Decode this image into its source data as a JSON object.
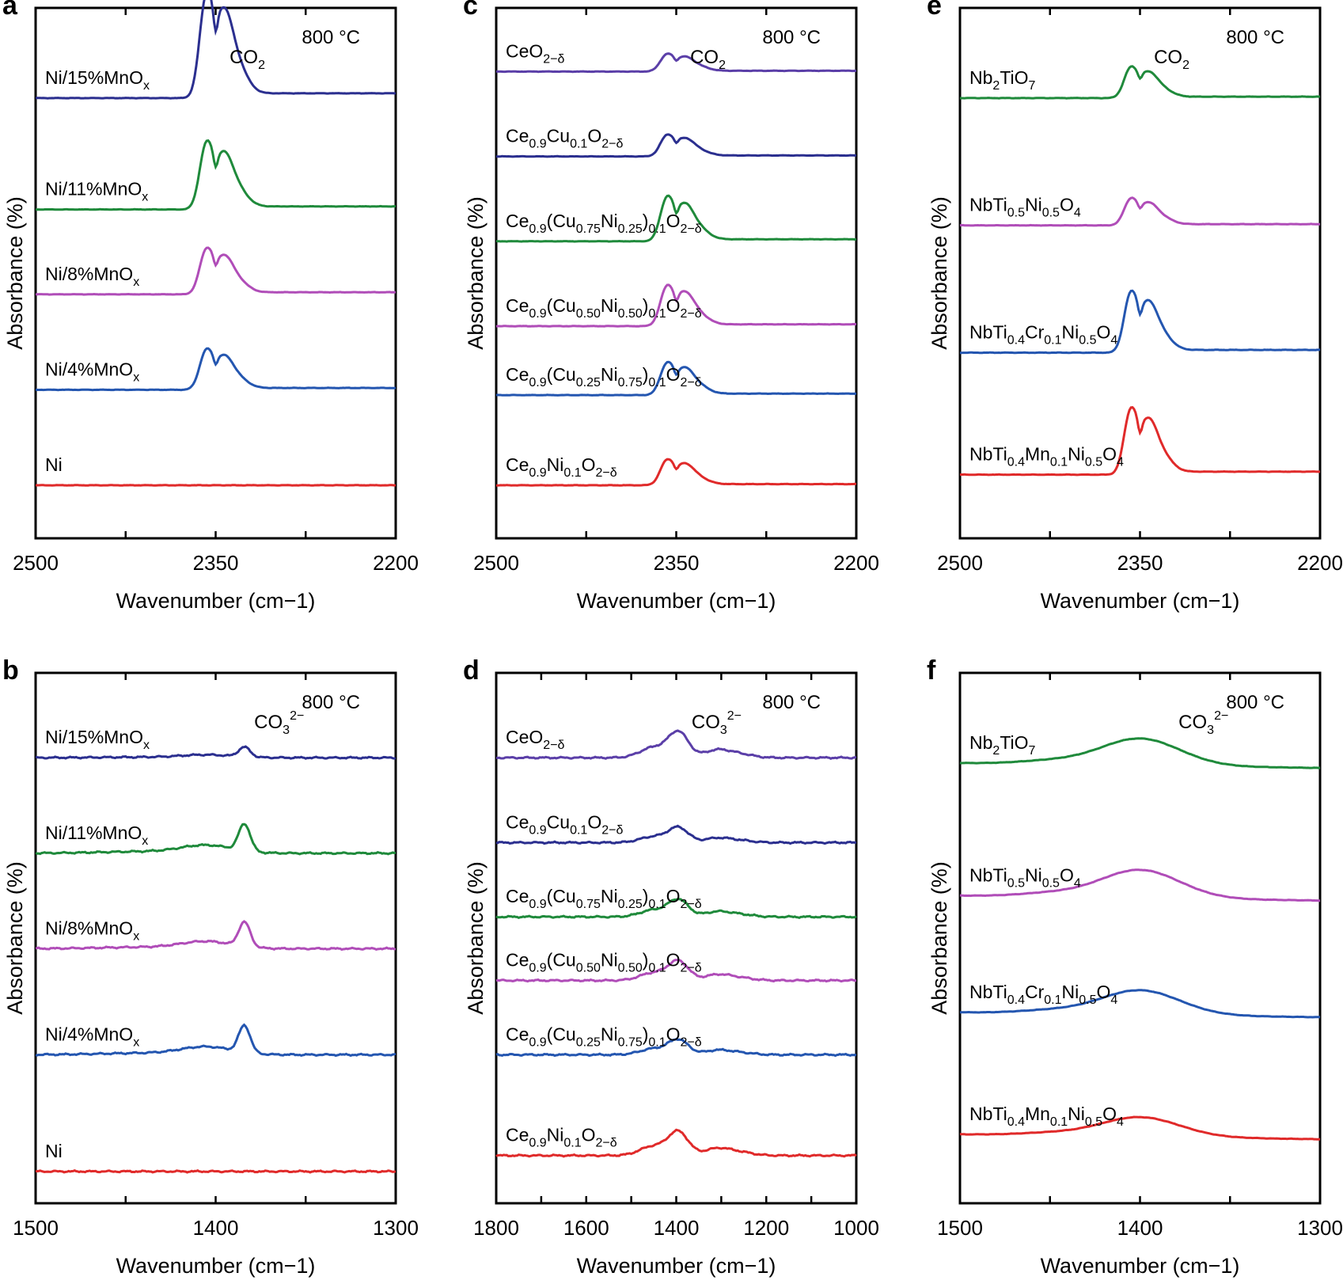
{
  "chart_data": [
    {
      "panel": "a",
      "type": "line",
      "title": "",
      "annotation": "800 °C",
      "band": "CO2",
      "xlabel": "Wavenumber (cm−1)",
      "ylabel": "Absorbance (%)",
      "xlim": [
        2500,
        2200
      ],
      "xticks": [
        2500,
        2350,
        2200
      ],
      "series": [
        {
          "name": "Ni/15%MnOx",
          "color": "#2b2f8f",
          "baseline": 0.83,
          "kind": "co2",
          "amp": 0.78
        },
        {
          "name": "Ni/11%MnOx",
          "color": "#1f8a3b",
          "baseline": 0.62,
          "kind": "co2",
          "amp": 0.5
        },
        {
          "name": "Ni/8%MnOx",
          "color": "#b04db8",
          "baseline": 0.46,
          "kind": "co2",
          "amp": 0.34
        },
        {
          "name": "Ni/4%MnOx",
          "color": "#2456b0",
          "baseline": 0.28,
          "kind": "co2",
          "amp": 0.3
        },
        {
          "name": "Ni",
          "color": "#e02a2a",
          "baseline": 0.1,
          "kind": "flat",
          "amp": 0
        }
      ]
    },
    {
      "panel": "b",
      "type": "line",
      "title": "",
      "annotation": "800 °C",
      "band": "CO3 2−",
      "xlabel": "Wavenumber (cm−1)",
      "ylabel": "Absorbance (%)",
      "xlim": [
        1500,
        1300
      ],
      "xticks": [
        1500,
        1400,
        1300
      ],
      "series": [
        {
          "name": "Ni/15%MnOx",
          "color": "#2b2f8f",
          "baseline": 0.84,
          "kind": "co3sharp",
          "amp": 0.08
        },
        {
          "name": "Ni/11%MnOx",
          "color": "#1f8a3b",
          "baseline": 0.66,
          "kind": "co3sharp",
          "amp": 0.22
        },
        {
          "name": "Ni/8%MnOx",
          "color": "#b04db8",
          "baseline": 0.48,
          "kind": "co3sharp",
          "amp": 0.2
        },
        {
          "name": "Ni/4%MnOx",
          "color": "#2456b0",
          "baseline": 0.28,
          "kind": "co3sharp",
          "amp": 0.22
        },
        {
          "name": "Ni",
          "color": "#e02a2a",
          "baseline": 0.06,
          "kind": "flat",
          "amp": 0
        }
      ]
    },
    {
      "panel": "c",
      "type": "line",
      "title": "",
      "annotation": "800 °C",
      "band": "CO2",
      "xlabel": "Wavenumber (cm−1)",
      "ylabel": "Absorbance (%)",
      "xlim": [
        2500,
        2200
      ],
      "xticks": [
        2500,
        2350,
        2200
      ],
      "series": [
        {
          "name": "CeO2−δ",
          "color": "#5b3fa8",
          "baseline": 0.88,
          "kind": "co2",
          "amp": 0.13
        },
        {
          "name": "Ce0.9Cu0.1O2−δ",
          "color": "#2b2f8f",
          "baseline": 0.72,
          "kind": "co2",
          "amp": 0.16
        },
        {
          "name": "Ce0.9(Cu0.75Ni0.25)0.1O2−δ",
          "color": "#1f8a3b",
          "baseline": 0.56,
          "kind": "co2",
          "amp": 0.33
        },
        {
          "name": "Ce0.9(Cu0.50Ni0.50)0.1O2−δ",
          "color": "#b04db8",
          "baseline": 0.4,
          "kind": "co2",
          "amp": 0.3
        },
        {
          "name": "Ce0.9(Cu0.25Ni0.75)0.1O2−δ",
          "color": "#2456b0",
          "baseline": 0.27,
          "kind": "co2",
          "amp": 0.24
        },
        {
          "name": "Ce0.9Ni0.1O2−δ",
          "color": "#e02a2a",
          "baseline": 0.1,
          "kind": "co2",
          "amp": 0.19
        }
      ]
    },
    {
      "panel": "d",
      "type": "line",
      "title": "",
      "annotation": "800 °C",
      "band": "CO3 2−",
      "xlabel": "Wavenumber (cm−1)",
      "ylabel": "Absorbance (%)",
      "xlim": [
        1800,
        1000
      ],
      "xticks": [
        1800,
        1600,
        1400,
        1200,
        1000
      ],
      "series": [
        {
          "name": "CeO2−δ",
          "color": "#5b3fa8",
          "baseline": 0.84,
          "kind": "co3broad",
          "amp": 0.24
        },
        {
          "name": "Ce0.9Cu0.1O2−δ",
          "color": "#2b2f8f",
          "baseline": 0.68,
          "kind": "co3broad",
          "amp": 0.14
        },
        {
          "name": "Ce0.9(Cu0.75Ni0.25)0.1O2−δ",
          "color": "#1f8a3b",
          "baseline": 0.54,
          "kind": "co3broad",
          "amp": 0.16
        },
        {
          "name": "Ce0.9(Cu0.50Ni0.50)0.1O2−δ",
          "color": "#b04db8",
          "baseline": 0.42,
          "kind": "co3broad",
          "amp": 0.18
        },
        {
          "name": "Ce0.9(Cu0.25Ni0.75)0.1O2−δ",
          "color": "#2456b0",
          "baseline": 0.28,
          "kind": "co3broad",
          "amp": 0.14
        },
        {
          "name": "Ce0.9Ni0.1O2−δ",
          "color": "#e02a2a",
          "baseline": 0.09,
          "kind": "co3broad",
          "amp": 0.22
        }
      ]
    },
    {
      "panel": "e",
      "type": "line",
      "title": "",
      "annotation": "800 °C",
      "band": "CO2",
      "xlabel": "Wavenumber (cm−1)",
      "ylabel": "Absorbance (%)",
      "xlim": [
        2500,
        2200
      ],
      "xticks": [
        2500,
        2350,
        2200
      ],
      "series": [
        {
          "name": "Nb2TiO7",
          "color": "#1f8a3b",
          "baseline": 0.83,
          "kind": "co2",
          "amp": 0.23
        },
        {
          "name": "NbTi0.5Ni0.5O4",
          "color": "#b04db8",
          "baseline": 0.59,
          "kind": "co2",
          "amp": 0.2
        },
        {
          "name": "NbTi0.4Cr0.1Ni0.5O4",
          "color": "#2456b0",
          "baseline": 0.35,
          "kind": "co2",
          "amp": 0.45
        },
        {
          "name": "NbTi0.4Mn0.1Ni0.5O4",
          "color": "#e02a2a",
          "baseline": 0.12,
          "kind": "co2",
          "amp": 0.49
        }
      ]
    },
    {
      "panel": "f",
      "type": "line",
      "title": "",
      "annotation": "800 °C",
      "band": "CO3 2−",
      "xlabel": "Wavenumber (cm−1)",
      "ylabel": "Absorbance (%)",
      "xlim": [
        1500,
        1300
      ],
      "xticks": [
        1500,
        1400,
        1300
      ],
      "series": [
        {
          "name": "Nb2TiO7",
          "color": "#1f8a3b",
          "baseline": 0.83,
          "kind": "co3smooth",
          "amp": 0.22
        },
        {
          "name": "NbTi0.5Ni0.5O4",
          "color": "#b04db8",
          "baseline": 0.58,
          "kind": "co3smooth",
          "amp": 0.23
        },
        {
          "name": "NbTi0.4Cr0.1Ni0.5O4",
          "color": "#2456b0",
          "baseline": 0.36,
          "kind": "co3smooth",
          "amp": 0.2
        },
        {
          "name": "NbTi0.4Mn0.1Ni0.5O4",
          "color": "#e02a2a",
          "baseline": 0.13,
          "kind": "co3smooth",
          "amp": 0.16
        }
      ]
    }
  ]
}
